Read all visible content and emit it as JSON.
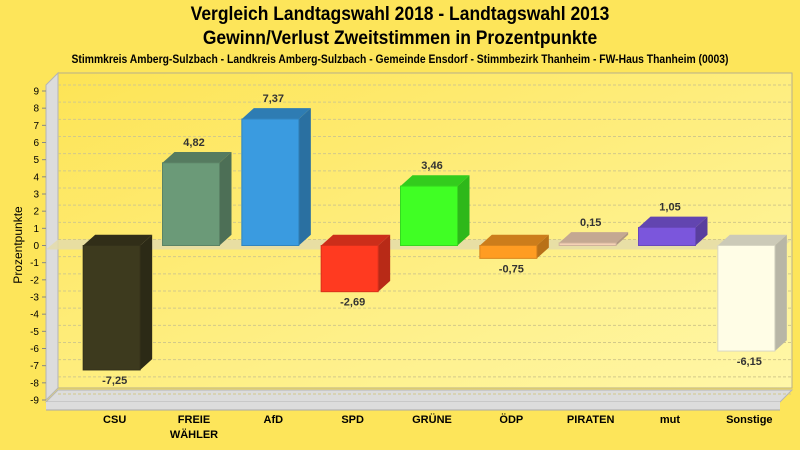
{
  "chart_data": {
    "type": "bar",
    "title": "Vergleich Landtagswahl 2018 - Landtagswahl 2013",
    "subtitle": "Gewinn/Verlust Zweitstimmen in Prozentpunkte",
    "caption": "Stimmkreis Amberg-Sulzbach - Landkreis Amberg-Sulzbach - Gemeinde Ensdorf - Stimmbezirk Thanheim - FW-Haus Thanheim (0003)",
    "xlabel": "",
    "ylabel": "Prozentpunkte",
    "ylim": [
      -9,
      9
    ],
    "yticks": [
      9,
      8,
      7,
      6,
      5,
      4,
      3,
      2,
      1,
      0,
      -1,
      -2,
      -3,
      -4,
      -5,
      -6,
      -7,
      -8,
      -9
    ],
    "grid": true,
    "categories": [
      [
        "CSU"
      ],
      [
        "FREIE",
        "WÄHLER"
      ],
      [
        "AfD"
      ],
      [
        "SPD"
      ],
      [
        "GRÜNE"
      ],
      [
        "ÖDP"
      ],
      [
        "PIRATEN"
      ],
      [
        "mut"
      ],
      [
        "Sonstige"
      ]
    ],
    "values": [
      -7.25,
      4.82,
      7.37,
      -2.69,
      3.46,
      -0.75,
      0.15,
      1.05,
      -6.15
    ],
    "value_labels": [
      "-7,25",
      "4,82",
      "7,37",
      "-2,69",
      "3,46",
      "-0,75",
      "0,15",
      "1,05",
      "-6,15"
    ],
    "colors": [
      "#3d3a1e",
      "#6b9a78",
      "#3a9be0",
      "#ff3a20",
      "#40ff24",
      "#ff9c22",
      "#f5d2b6",
      "#7b56dc",
      "#fffde6"
    ]
  }
}
